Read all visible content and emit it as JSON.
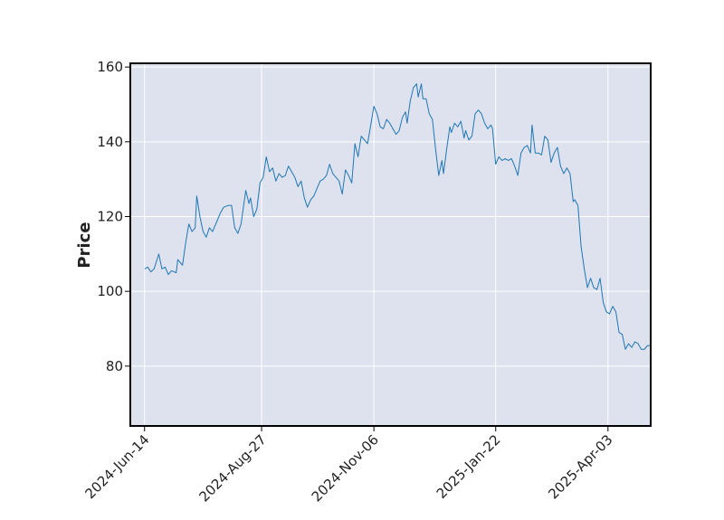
{
  "chart_data": {
    "type": "line",
    "title": "",
    "xlabel": "",
    "ylabel": "Price",
    "xlim": [
      "2024-06-05",
      "2025-04-30"
    ],
    "ylim": [
      64,
      161
    ],
    "grid": true,
    "background_color": "#dde2ee",
    "line_color": "#1f77b4",
    "yticks": [
      80,
      100,
      120,
      140,
      160
    ],
    "xticks": [
      {
        "date": "2024-06-14",
        "label": "2024-Jun-14"
      },
      {
        "date": "2024-08-27",
        "label": "2024-Aug-27"
      },
      {
        "date": "2024-11-06",
        "label": "2024-Nov-06"
      },
      {
        "date": "2025-01-22",
        "label": "2025-Jan-22"
      },
      {
        "date": "2025-04-03",
        "label": "2025-Apr-03"
      }
    ],
    "series": [
      {
        "kind": "line",
        "points": [
          [
            "2024-06-14",
            106
          ],
          [
            "2024-06-16",
            106.5
          ],
          [
            "2024-06-18",
            105.2
          ],
          [
            "2024-06-20",
            106
          ],
          [
            "2024-06-23",
            110
          ],
          [
            "2024-06-25",
            106
          ],
          [
            "2024-06-27",
            106.5
          ],
          [
            "2024-06-29",
            104.5
          ],
          [
            "2024-07-01",
            105.5
          ],
          [
            "2024-07-04",
            105
          ],
          [
            "2024-07-05",
            108.5
          ],
          [
            "2024-07-08",
            107
          ],
          [
            "2024-07-10",
            113
          ],
          [
            "2024-07-12",
            118
          ],
          [
            "2024-07-14",
            116
          ],
          [
            "2024-07-16",
            117
          ],
          [
            "2024-07-17",
            125.5
          ],
          [
            "2024-07-19",
            120
          ],
          [
            "2024-07-21",
            116
          ],
          [
            "2024-07-23",
            114.5
          ],
          [
            "2024-07-25",
            117
          ],
          [
            "2024-07-27",
            116
          ],
          [
            "2024-07-30",
            119
          ],
          [
            "2024-08-01",
            121
          ],
          [
            "2024-08-03",
            122.5
          ],
          [
            "2024-08-06",
            123
          ],
          [
            "2024-08-08",
            123
          ],
          [
            "2024-08-10",
            117
          ],
          [
            "2024-08-12",
            115.5
          ],
          [
            "2024-08-14",
            118
          ],
          [
            "2024-08-17",
            127
          ],
          [
            "2024-08-19",
            123.5
          ],
          [
            "2024-08-20",
            125
          ],
          [
            "2024-08-22",
            120
          ],
          [
            "2024-08-24",
            122
          ],
          [
            "2024-08-26",
            129
          ],
          [
            "2024-08-28",
            130.5
          ],
          [
            "2024-08-30",
            136
          ],
          [
            "2024-09-01",
            132
          ],
          [
            "2024-09-03",
            133
          ],
          [
            "2024-09-05",
            129.5
          ],
          [
            "2024-09-07",
            131.5
          ],
          [
            "2024-09-09",
            130.5
          ],
          [
            "2024-09-11",
            131
          ],
          [
            "2024-09-13",
            133.5
          ],
          [
            "2024-09-15",
            132
          ],
          [
            "2024-09-17",
            130.5
          ],
          [
            "2024-09-19",
            128
          ],
          [
            "2024-09-21",
            129.5
          ],
          [
            "2024-09-23",
            125
          ],
          [
            "2024-09-25",
            122.5
          ],
          [
            "2024-09-27",
            124.5
          ],
          [
            "2024-09-29",
            125.5
          ],
          [
            "2024-10-01",
            127.5
          ],
          [
            "2024-10-03",
            129.5
          ],
          [
            "2024-10-05",
            130
          ],
          [
            "2024-10-07",
            131
          ],
          [
            "2024-10-09",
            134
          ],
          [
            "2024-10-11",
            131.5
          ],
          [
            "2024-10-13",
            130.5
          ],
          [
            "2024-10-15",
            129.5
          ],
          [
            "2024-10-17",
            126
          ],
          [
            "2024-10-19",
            132.5
          ],
          [
            "2024-10-21",
            131
          ],
          [
            "2024-10-23",
            129
          ],
          [
            "2024-10-25",
            139.5
          ],
          [
            "2024-10-27",
            136
          ],
          [
            "2024-10-29",
            141.5
          ],
          [
            "2024-10-31",
            140.5
          ],
          [
            "2024-11-02",
            139.5
          ],
          [
            "2024-11-04",
            144.5
          ],
          [
            "2024-11-06",
            149.5
          ],
          [
            "2024-11-08",
            147.5
          ],
          [
            "2024-11-10",
            144
          ],
          [
            "2024-11-12",
            143.5
          ],
          [
            "2024-11-14",
            146
          ],
          [
            "2024-11-16",
            145
          ],
          [
            "2024-11-18",
            143.5
          ],
          [
            "2024-11-20",
            142
          ],
          [
            "2024-11-22",
            143
          ],
          [
            "2024-11-24",
            146.5
          ],
          [
            "2024-11-26",
            148
          ],
          [
            "2024-11-27",
            145
          ],
          [
            "2024-11-29",
            151
          ],
          [
            "2024-12-01",
            154.5
          ],
          [
            "2024-12-03",
            155.5
          ],
          [
            "2024-12-04",
            152
          ],
          [
            "2024-12-06",
            155.5
          ],
          [
            "2024-12-07",
            151.5
          ],
          [
            "2024-12-09",
            151.5
          ],
          [
            "2024-12-11",
            147.5
          ],
          [
            "2024-12-13",
            146
          ],
          [
            "2024-12-15",
            138
          ],
          [
            "2024-12-17",
            131
          ],
          [
            "2024-12-19",
            135
          ],
          [
            "2024-12-20",
            131.5
          ],
          [
            "2024-12-22",
            138
          ],
          [
            "2024-12-24",
            144
          ],
          [
            "2024-12-25",
            142.5
          ],
          [
            "2024-12-27",
            145
          ],
          [
            "2024-12-29",
            144
          ],
          [
            "2024-12-31",
            145.5
          ],
          [
            "2025-01-02",
            141
          ],
          [
            "2025-01-03",
            143
          ],
          [
            "2025-01-05",
            140.5
          ],
          [
            "2025-01-07",
            141.5
          ],
          [
            "2025-01-09",
            147.5
          ],
          [
            "2025-01-11",
            148.5
          ],
          [
            "2025-01-13",
            147.5
          ],
          [
            "2025-01-15",
            145
          ],
          [
            "2025-01-17",
            143.5
          ],
          [
            "2025-01-19",
            144.5
          ],
          [
            "2025-01-20",
            143.5
          ],
          [
            "2025-01-22",
            134
          ],
          [
            "2025-01-24",
            136
          ],
          [
            "2025-01-26",
            135
          ],
          [
            "2025-01-28",
            135.5
          ],
          [
            "2025-01-30",
            135
          ],
          [
            "2025-02-01",
            135.5
          ],
          [
            "2025-02-03",
            133.5
          ],
          [
            "2025-02-05",
            131
          ],
          [
            "2025-02-07",
            137
          ],
          [
            "2025-02-09",
            138.5
          ],
          [
            "2025-02-11",
            139
          ],
          [
            "2025-02-13",
            137
          ],
          [
            "2025-02-14",
            144.5
          ],
          [
            "2025-02-16",
            137
          ],
          [
            "2025-02-18",
            137
          ],
          [
            "2025-02-20",
            136.5
          ],
          [
            "2025-02-22",
            141.5
          ],
          [
            "2025-02-24",
            140.5
          ],
          [
            "2025-02-26",
            134.5
          ],
          [
            "2025-02-28",
            137
          ],
          [
            "2025-03-02",
            138.5
          ],
          [
            "2025-03-04",
            133.5
          ],
          [
            "2025-03-06",
            131.5
          ],
          [
            "2025-03-08",
            133
          ],
          [
            "2025-03-10",
            131.5
          ],
          [
            "2025-03-12",
            124
          ],
          [
            "2025-03-13",
            124.5
          ],
          [
            "2025-03-15",
            123
          ],
          [
            "2025-03-17",
            112
          ],
          [
            "2025-03-19",
            106
          ],
          [
            "2025-03-21",
            101
          ],
          [
            "2025-03-23",
            103.5
          ],
          [
            "2025-03-25",
            101
          ],
          [
            "2025-03-27",
            100.5
          ],
          [
            "2025-03-29",
            103.5
          ],
          [
            "2025-03-31",
            97
          ],
          [
            "2025-04-02",
            94.5
          ],
          [
            "2025-04-04",
            94
          ],
          [
            "2025-04-06",
            96
          ],
          [
            "2025-04-08",
            94.5
          ],
          [
            "2025-04-10",
            89
          ],
          [
            "2025-04-12",
            88.5
          ],
          [
            "2025-04-14",
            84.5
          ],
          [
            "2025-04-16",
            86
          ],
          [
            "2025-04-18",
            85
          ],
          [
            "2025-04-20",
            86.5
          ],
          [
            "2025-04-22",
            86
          ],
          [
            "2025-04-24",
            84.5
          ],
          [
            "2025-04-26",
            84.5
          ],
          [
            "2025-04-28",
            85.5
          ],
          [
            "2025-04-30",
            85.5
          ]
        ]
      }
    ]
  }
}
